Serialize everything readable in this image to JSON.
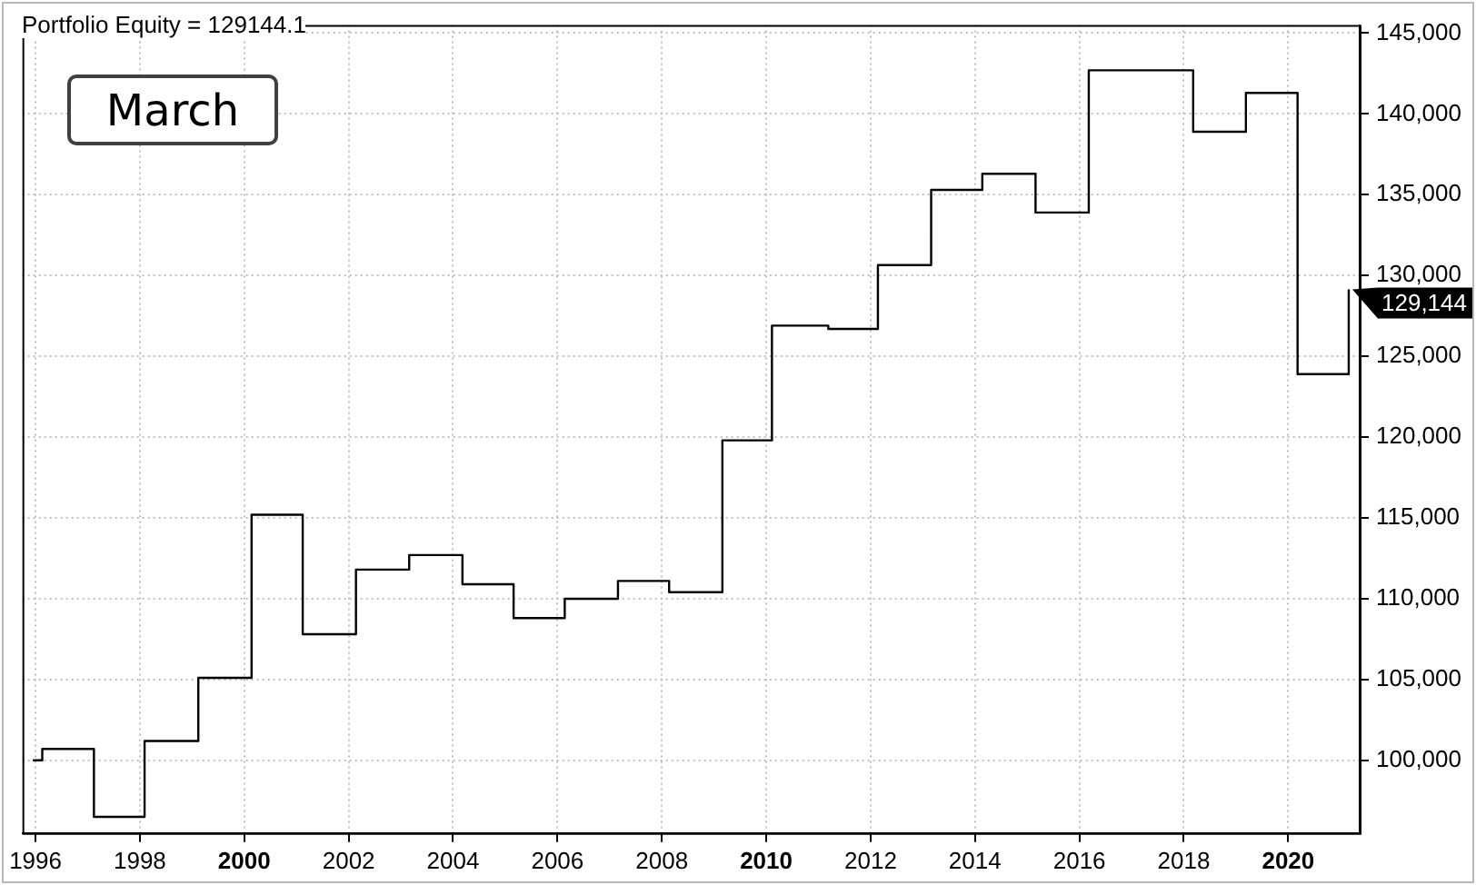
{
  "chart_data": {
    "type": "step",
    "title": "Portfolio Equity = 129144.1",
    "marker": "none",
    "grid": true,
    "x": [
      1995.95,
      1996.13,
      1997.12,
      1998.09,
      1999.12,
      2000.14,
      2001.12,
      2002.14,
      2003.16,
      2004.18,
      2005.16,
      2006.14,
      2007.16,
      2008.14,
      2009.16,
      2010.11,
      2011.19,
      2012.14,
      2013.16,
      2014.14,
      2015.16,
      2016.18,
      2018.18,
      2019.19,
      2020.18,
      2021.16
    ],
    "series": [
      {
        "color": "#000000",
        "values": [
          100000,
          100700,
          96500,
          101200,
          105100,
          115200,
          107800,
          111800,
          112700,
          110900,
          108800,
          110000,
          111100,
          110400,
          119800,
          126900,
          126700,
          130650,
          135300,
          136300,
          133900,
          142700,
          138900,
          141300,
          123900,
          129144
        ]
      }
    ],
    "xlim": [
      1995.75,
      2021.37
    ],
    "xticks": [
      1996,
      1998,
      2000,
      2002,
      2004,
      2006,
      2008,
      2010,
      2012,
      2014,
      2016,
      2018,
      2020
    ],
    "ylim": [
      95500,
      145500
    ],
    "yticks": [
      {
        "value": 100000,
        "label": "100,000"
      },
      {
        "value": 105000,
        "label": "105,000"
      },
      {
        "value": 110000,
        "label": "110,000"
      },
      {
        "value": 115000,
        "label": "115,000"
      },
      {
        "value": 120000,
        "label": "120,000"
      },
      {
        "value": 125000,
        "label": "125,000"
      },
      {
        "value": 130000,
        "label": "130,000"
      },
      {
        "value": 135000,
        "label": "135,000"
      },
      {
        "value": 140000,
        "label": "140,000"
      },
      {
        "value": 145000,
        "label": "145,000"
      }
    ],
    "annotations": [
      "March",
      {
        "text": "129,144",
        "x": 2021.16,
        "y": 129144
      }
    ]
  }
}
